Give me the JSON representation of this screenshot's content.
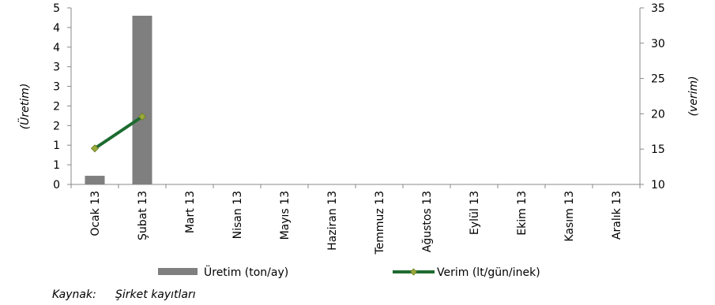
{
  "chart_data": {
    "type": "bar+line",
    "categories": [
      "Ocak 13",
      "Şubat 13",
      "Mart 13",
      "Nisan 13",
      "Mayıs 13",
      "Haziran 13",
      "Temmuz 13",
      "Ağustos 13",
      "Eylül 13",
      "Ekim 13",
      "Kasım 13",
      "Aralık 13"
    ],
    "series": [
      {
        "name": "Üretim (ton/ay)",
        "type": "bar",
        "axis": "left",
        "color": "#7f7f7f",
        "values": [
          0.22,
          4.3,
          null,
          null,
          null,
          null,
          null,
          null,
          null,
          null,
          null,
          null
        ]
      },
      {
        "name": "Verim (lt/gün/inek)",
        "type": "line",
        "axis": "right",
        "color": "#1e6b30",
        "marker_color": "#9aaa3a",
        "values": [
          15.1,
          19.6,
          null,
          null,
          null,
          null,
          null,
          null,
          null,
          null,
          null,
          null
        ]
      }
    ],
    "ylabel_left": "(Üretim)",
    "ylabel_right": "(verim)",
    "ylim_left": [
      0,
      4.5
    ],
    "ylim_right": [
      10,
      35
    ],
    "left_tick_labels": [
      "0",
      "1",
      "1",
      "2",
      "2",
      "3",
      "3",
      "4",
      "4",
      "5"
    ],
    "right_tick_labels": [
      "10",
      "15",
      "20",
      "25",
      "30",
      "35"
    ],
    "grid": false,
    "legend": "bottom"
  },
  "source": {
    "label": "Kaynak:",
    "text": "Şirket kayıtları"
  }
}
